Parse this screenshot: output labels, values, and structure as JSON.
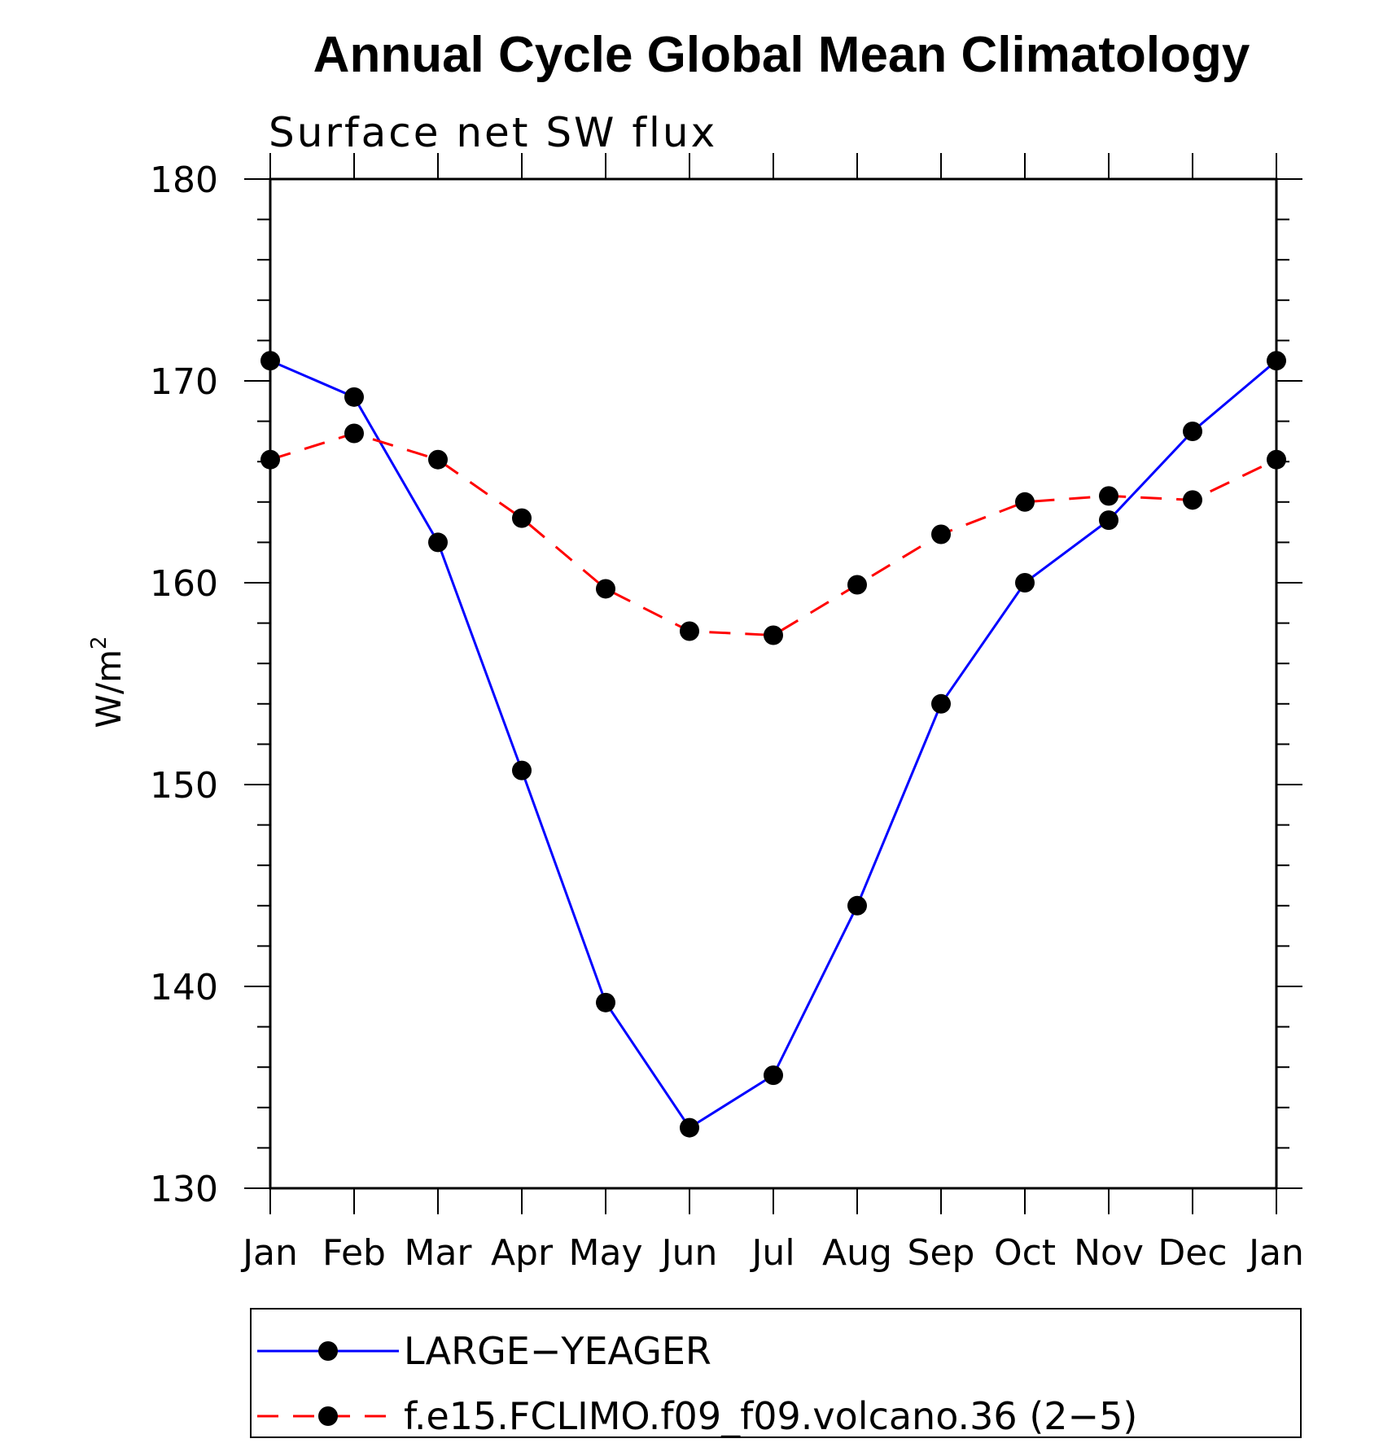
{
  "chart_data": {
    "type": "line",
    "title": "Annual Cycle Global Mean Climatology",
    "subtitle": "Surface net SW flux",
    "xlabel": "",
    "ylabel": "W/m",
    "ylabel_superscript": "2",
    "categories": [
      "Jan",
      "Feb",
      "Mar",
      "Apr",
      "May",
      "Jun",
      "Jul",
      "Aug",
      "Sep",
      "Oct",
      "Nov",
      "Dec",
      "Jan"
    ],
    "ylim": [
      130,
      180
    ],
    "yticks": [
      130,
      140,
      150,
      160,
      170,
      180
    ],
    "ytick_labels": [
      "130",
      "140",
      "150",
      "160",
      "170",
      "180"
    ],
    "grid": false,
    "legend_position": "bottom",
    "series": [
      {
        "name": "LARGE−YEAGER",
        "color": "#0000ff",
        "line_style": "solid",
        "marker": "filled-circle",
        "marker_color": "#000000",
        "values": [
          171.0,
          169.2,
          162.0,
          150.7,
          139.2,
          133.0,
          135.6,
          144.0,
          154.0,
          160.0,
          163.1,
          167.5,
          171.0
        ]
      },
      {
        "name": "f.e15.FCLIMO.f09_f09.volcano.36 (2−5)",
        "color": "#ff0000",
        "line_style": "dashed",
        "marker": "filled-circle",
        "marker_color": "#000000",
        "values": [
          166.1,
          167.4,
          166.1,
          163.2,
          159.7,
          157.6,
          157.4,
          159.9,
          162.4,
          164.0,
          164.3,
          164.1,
          166.1
        ]
      }
    ]
  }
}
